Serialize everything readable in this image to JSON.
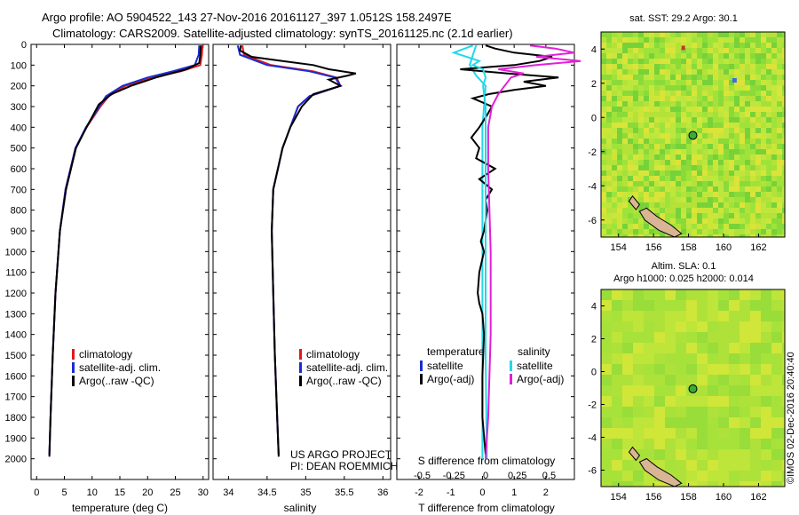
{
  "header": {
    "line1": "Argo profile: AO 5904522_143 27-Nov-2016 20161127_397 1.0512S 158.2497E",
    "line2": "Climatology: CARS2009. Satellite-adjusted climatology: synTS_20161125.nc (2.1d earlier)"
  },
  "colors": {
    "climatology": "#e01a1a",
    "satellite_adj": "#1a2bd6",
    "argo": "#000000",
    "satellite_s": "#22d8e8",
    "argo_s": "#e020d8",
    "map_green": "#9ee03a",
    "map_yellow": "#dfe83a",
    "land": "#d9b596"
  },
  "chart_data": [
    {
      "id": "temperature",
      "type": "line",
      "xlabel": "temperature (deg C)",
      "ylabel": "",
      "xlim": [
        -1,
        31
      ],
      "ylim": [
        2100,
        0
      ],
      "xticks": [
        0,
        5,
        10,
        15,
        20,
        25,
        30
      ],
      "yticks": [
        0,
        100,
        200,
        300,
        400,
        500,
        600,
        700,
        800,
        900,
        1000,
        1100,
        1200,
        1300,
        1400,
        1500,
        1600,
        1700,
        1800,
        1900,
        2000
      ],
      "legend": [
        "climatology",
        "satellite-adj. clim.",
        "Argo(..raw -QC)"
      ],
      "series": [
        {
          "name": "climatology",
          "depth": [
            5,
            50,
            100,
            130,
            160,
            200,
            250,
            300,
            400,
            500,
            700,
            900,
            1200,
            1500,
            1800,
            1980
          ],
          "values": [
            29.9,
            29.8,
            29.5,
            26,
            21,
            16,
            13,
            11.5,
            9,
            7,
            5.2,
            4.2,
            3.4,
            2.9,
            2.5,
            2.3
          ]
        },
        {
          "name": "satellite-adj. clim.",
          "depth": [
            5,
            50,
            100,
            130,
            160,
            200,
            250,
            300,
            400,
            500,
            700,
            900,
            1200,
            1500,
            1800,
            1980
          ],
          "values": [
            29.3,
            29.2,
            28.5,
            24.5,
            20,
            15.5,
            12.5,
            11.3,
            8.9,
            7,
            5.2,
            4.2,
            3.4,
            2.9,
            2.5,
            2.3
          ]
        },
        {
          "name": "Argo(..raw -QC)",
          "depth": [
            5,
            50,
            90,
            120,
            160,
            200,
            240,
            290,
            400,
            500,
            700,
            900,
            1200,
            1500,
            1800,
            1990
          ],
          "values": [
            29.6,
            29.5,
            29.3,
            27,
            21.5,
            17,
            13.5,
            11.2,
            9,
            7.1,
            5.3,
            4.2,
            3.4,
            2.9,
            2.5,
            2.3
          ]
        }
      ]
    },
    {
      "id": "salinity",
      "type": "line",
      "xlabel": "salinity",
      "xlim": [
        33.8,
        36.1
      ],
      "ylim": [
        2100,
        0
      ],
      "xticks": [
        34,
        34.5,
        35,
        35.5,
        36
      ],
      "legend": [
        "climatology",
        "satellite-adj. clim.",
        "Argo(..raw -QC)"
      ],
      "series": [
        {
          "name": "climatology",
          "depth": [
            5,
            50,
            100,
            130,
            160,
            200,
            250,
            300,
            400,
            500,
            700,
            900,
            1200,
            1500,
            1800,
            1980
          ],
          "values": [
            34.18,
            34.2,
            34.55,
            35.1,
            35.4,
            35.45,
            35.05,
            34.9,
            34.8,
            34.7,
            34.58,
            34.56,
            34.58,
            34.6,
            34.63,
            34.65
          ]
        },
        {
          "name": "satellite-adj. clim.",
          "depth": [
            5,
            50,
            100,
            130,
            160,
            200,
            250,
            300,
            400,
            500,
            700,
            900,
            1200,
            1500,
            1800,
            1980
          ],
          "values": [
            34.12,
            34.15,
            34.5,
            35.05,
            35.38,
            35.45,
            35.05,
            34.9,
            34.8,
            34.7,
            34.58,
            34.56,
            34.58,
            34.6,
            34.63,
            34.65
          ]
        },
        {
          "name": "Argo(..raw -QC)",
          "depth": [
            5,
            30,
            60,
            80,
            100,
            120,
            140,
            150,
            170,
            200,
            240,
            300,
            400,
            500,
            700,
            900,
            1200,
            1500,
            1800,
            1990
          ],
          "values": [
            34.16,
            34.15,
            34.3,
            34.7,
            35.1,
            35.3,
            35.65,
            35.55,
            35.3,
            35.45,
            35.1,
            34.95,
            34.8,
            34.7,
            34.58,
            34.56,
            34.58,
            34.6,
            34.63,
            34.65
          ]
        }
      ]
    },
    {
      "id": "difference",
      "type": "line",
      "xlabel": "T difference from climatology",
      "xlabel_top": "S difference from climatology",
      "xlim": [
        -2.7,
        2.9
      ],
      "ylim": [
        2100,
        0
      ],
      "xticks": [
        -2,
        -1,
        0,
        1,
        2
      ],
      "sticks": [
        -0.5,
        -0.25,
        0,
        0.25,
        0.5
      ],
      "legend_t_title": "temperature",
      "legend_s_title": "salinity",
      "legend_t": [
        "satellite",
        "Argo(-adj)"
      ],
      "legend_s": [
        "satellite",
        "Argo(-adj)"
      ],
      "series": [
        {
          "name": "T satellite",
          "depth": [
            5,
            50,
            100,
            150,
            200,
            300,
            400,
            600,
            1000,
            1500,
            2000
          ],
          "values": [
            -0.2,
            -0.3,
            -0.4,
            -0.2,
            0.1,
            0.05,
            0,
            0,
            0,
            0,
            0
          ]
        },
        {
          "name": "T Argo(-adj)",
          "depth": [
            5,
            20,
            40,
            60,
            80,
            100,
            120,
            140,
            160,
            180,
            200,
            220,
            240,
            260,
            300,
            340,
            400,
            450,
            500,
            550,
            600,
            650,
            700,
            750,
            800,
            850,
            900,
            950,
            1000,
            1100,
            1200,
            1250,
            1300,
            1400,
            1600,
            1800,
            1980
          ],
          "values": [
            0.1,
            0.4,
            1.0,
            2.2,
            1.8,
            1.0,
            -0.7,
            0.8,
            2.4,
            1.3,
            2.0,
            1.0,
            0.2,
            -0.3,
            0.3,
            0.15,
            -0.1,
            -0.35,
            -0.1,
            -0.2,
            0.4,
            -0.1,
            0.3,
            0.1,
            0.15,
            0.1,
            0.05,
            -0.05,
            0.05,
            -0.1,
            -0.15,
            -0.1,
            0,
            0.05,
            0,
            0,
            0.1
          ]
        },
        {
          "name": "S satellite",
          "depth": [
            5,
            40,
            80,
            100,
            120,
            160,
            200,
            300,
            400,
            600,
            1000,
            1500,
            2000
          ],
          "values": [
            -0.1,
            -0.25,
            -0.05,
            -0.1,
            -0.02,
            0.0,
            -0.02,
            0,
            0,
            0,
            0,
            0,
            0.01
          ]
        },
        {
          "name": "S Argo(-adj)",
          "depth": [
            5,
            20,
            40,
            60,
            80,
            100,
            120,
            140,
            160,
            200,
            240,
            300,
            400,
            600,
            800,
            1000,
            1200,
            1400,
            1600,
            1800,
            2000
          ],
          "values": [
            0.35,
            0.55,
            0.7,
            0.4,
            0.75,
            0.4,
            0.1,
            0.3,
            0.2,
            0.15,
            0.1,
            0.05,
            0.02,
            0.02,
            0.03,
            0.04,
            0.04,
            0.04,
            0.03,
            0.02,
            0.0
          ]
        }
      ]
    },
    {
      "id": "sst_map",
      "type": "heatmap",
      "title": "sat. SST: 29.2 Argo: 30.1",
      "xlim": [
        153,
        163.5
      ],
      "ylim": [
        -7,
        5
      ],
      "xticks": [
        154,
        156,
        158,
        160,
        162
      ],
      "yticks": [
        -6,
        -4,
        -2,
        0,
        2,
        4
      ],
      "argo_position": [
        158.25,
        -1.05
      ]
    },
    {
      "id": "sla_map",
      "type": "heatmap",
      "title": "Altim. SLA: 0.1",
      "subtitle": "Argo h1000: 0.025 h2000: 0.014",
      "xlim": [
        153,
        163.5
      ],
      "ylim": [
        -7,
        5
      ],
      "xticks": [
        154,
        156,
        158,
        160,
        162
      ],
      "yticks": [
        -6,
        -4,
        -2,
        0,
        2,
        4
      ],
      "argo_position": [
        158.25,
        -1.05
      ]
    }
  ],
  "annotations": {
    "project": "US ARGO PROJECT",
    "pi": "PI: DEAN ROEMMICH",
    "credit": "©IMOS 02-Dec-2016 20:40:40"
  }
}
